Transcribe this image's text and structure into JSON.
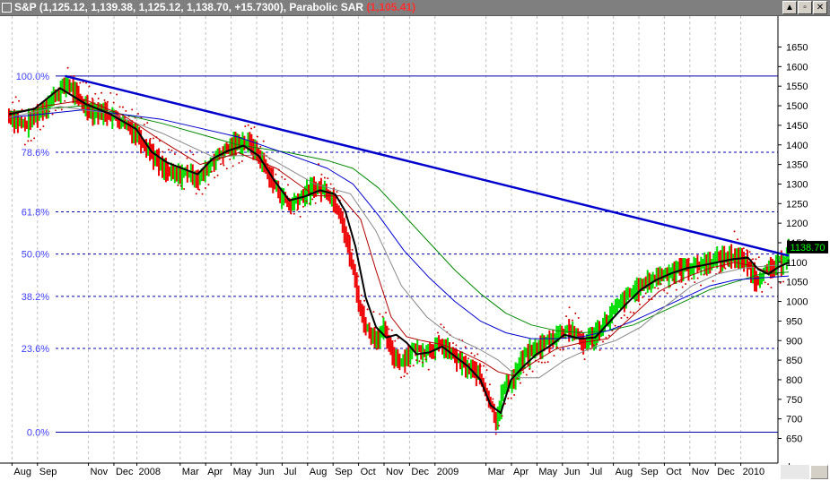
{
  "window": {
    "title_symbol": "S&P",
    "title_ohlc": "(1,125.12, 1,139.38, 1,125.12, 1,138.70, +15.7300)",
    "indicator_name": "Parabolic SAR",
    "indicator_value": "(1,105.41)",
    "minimize_glyph": "▲",
    "restore_glyph": "▫",
    "close_glyph": "✕"
  },
  "colors": {
    "price_up": "#00dd00",
    "price_down": "#ee0000",
    "sar_dots": "#cc0000",
    "ma_short": "#000000",
    "ma_medium": "#b00000",
    "ma_gray": "#888888",
    "ma_long_green": "#008800",
    "ma_long_blue": "#0000cc",
    "trendline": "#0000cc",
    "fib_lines": "#0000aa",
    "fib_labels": "#4040ff",
    "last_price_badge": "#000000",
    "last_price_text": "#00ff00",
    "grid": "#c0c0c0"
  },
  "chart_data": {
    "type": "line",
    "title": "S&P",
    "last_price_label": "1138.70",
    "ylim": [
      620,
      1680
    ],
    "y_ticks": [
      "650",
      "700",
      "750",
      "800",
      "850",
      "900",
      "950",
      "1000",
      "1050",
      "1100",
      "1150",
      "1200",
      "1250",
      "1300",
      "1350",
      "1400",
      "1450",
      "1500",
      "1550",
      "1600",
      "1650"
    ],
    "x_range": [
      0,
      29.4
    ],
    "x_tick_labels": [
      {
        "label": "Aug",
        "x": 0.4
      },
      {
        "label": "Sep",
        "x": 1.4
      },
      {
        "label": "Nov",
        "x": 3.4
      },
      {
        "label": "Dec",
        "x": 4.4
      },
      {
        "label": "2008",
        "x": 5.3
      },
      {
        "label": "Mar",
        "x": 7.0
      },
      {
        "label": "Apr",
        "x": 8.0
      },
      {
        "label": "May",
        "x": 9.0
      },
      {
        "label": "Jun",
        "x": 10.0
      },
      {
        "label": "Jul",
        "x": 11.0
      },
      {
        "label": "Aug",
        "x": 12.0
      },
      {
        "label": "Sep",
        "x": 13.0
      },
      {
        "label": "Oct",
        "x": 14.0
      },
      {
        "label": "Nov",
        "x": 15.0
      },
      {
        "label": "Dec",
        "x": 16.0
      },
      {
        "label": "2009",
        "x": 17.0
      },
      {
        "label": "Mar",
        "x": 19.0
      },
      {
        "label": "Apr",
        "x": 20.0
      },
      {
        "label": "May",
        "x": 21.0
      },
      {
        "label": "Jun",
        "x": 22.0
      },
      {
        "label": "Jul",
        "x": 23.0
      },
      {
        "label": "Aug",
        "x": 24.0
      },
      {
        "label": "Sep",
        "x": 25.0
      },
      {
        "label": "Oct",
        "x": 26.0
      },
      {
        "label": "Nov",
        "x": 27.0
      },
      {
        "label": "Dec",
        "x": 28.0
      },
      {
        "label": "2010",
        "x": 29.0
      },
      {
        "label": "Mar",
        "x": 30.9
      }
    ],
    "fibonacci_levels": [
      {
        "label": "100.0%",
        "value": 1576,
        "style": "solid"
      },
      {
        "label": "78.6%",
        "value": 1381,
        "style": "dashed"
      },
      {
        "label": "61.8%",
        "value": 1229,
        "style": "dashed"
      },
      {
        "label": "50.0%",
        "value": 1121,
        "style": "dashed"
      },
      {
        "label": "38.2%",
        "value": 1013,
        "style": "dashed"
      },
      {
        "label": "23.6%",
        "value": 880,
        "style": "dashed"
      },
      {
        "label": "0.0%",
        "value": 666,
        "style": "solid"
      }
    ],
    "trendline": {
      "x": [
        2.2,
        30.6
      ],
      "y": [
        1576,
        1117
      ]
    },
    "series": [
      {
        "name": "",
        "role": "price",
        "x": [
          0.0,
          0.6,
          1.2,
          1.8,
          2.3,
          2.8,
          3.3,
          3.8,
          4.4,
          5.0,
          5.5,
          6.0,
          6.5,
          7.0,
          7.5,
          8.0,
          8.5,
          9.0,
          9.5,
          10.0,
          10.5,
          11.0,
          11.5,
          12.0,
          12.5,
          13.0,
          13.5,
          13.8,
          14.1,
          14.4,
          14.7,
          15.0,
          15.4,
          15.8,
          16.2,
          16.6,
          17.0,
          17.5,
          18.0,
          18.4,
          18.8,
          19.1,
          19.4,
          19.8,
          20.2,
          20.6,
          21.0,
          21.5,
          22.0,
          22.5,
          23.0,
          23.5,
          24.0,
          24.5,
          25.0,
          25.5,
          26.0,
          26.5,
          27.0,
          27.5,
          28.0,
          28.5,
          29.0,
          29.3,
          29.6,
          29.9,
          30.2,
          30.4,
          30.6
        ],
        "y": [
          1478,
          1452,
          1488,
          1530,
          1560,
          1512,
          1490,
          1485,
          1465,
          1432,
          1392,
          1342,
          1325,
          1332,
          1318,
          1365,
          1390,
          1412,
          1405,
          1352,
          1290,
          1248,
          1275,
          1295,
          1285,
          1230,
          1080,
          975,
          925,
          910,
          930,
          870,
          850,
          880,
          875,
          885,
          890,
          860,
          830,
          820,
          760,
          700,
          780,
          810,
          860,
          880,
          895,
          920,
          935,
          895,
          920,
          960,
          1000,
          1030,
          1050,
          1070,
          1080,
          1090,
          1095,
          1105,
          1115,
          1120,
          1095,
          1060,
          1075,
          1085,
          1100,
          1110,
          1138.7
        ]
      },
      {
        "name": "",
        "role": "moving-average-short",
        "x": [
          0.0,
          1.0,
          2.0,
          3.0,
          4.0,
          5.0,
          5.6,
          6.2,
          6.8,
          7.4,
          8.0,
          8.6,
          9.2,
          9.8,
          10.4,
          11.0,
          11.6,
          12.2,
          12.8,
          13.2,
          13.6,
          14.0,
          14.4,
          14.8,
          15.2,
          15.6,
          16.0,
          16.5,
          17.0,
          17.5,
          18.0,
          18.5,
          18.9,
          19.3,
          19.7,
          20.2,
          20.7,
          21.2,
          21.8,
          22.4,
          23.0,
          23.6,
          24.2,
          24.8,
          25.4,
          26.0,
          26.6,
          27.2,
          27.8,
          28.4,
          29.0,
          29.4,
          29.8,
          30.2,
          30.6
        ],
        "y": [
          1478,
          1492,
          1545,
          1505,
          1478,
          1440,
          1382,
          1355,
          1340,
          1325,
          1365,
          1385,
          1398,
          1372,
          1310,
          1258,
          1268,
          1284,
          1274,
          1230,
          1140,
          1010,
          935,
          908,
          915,
          895,
          865,
          870,
          885,
          860,
          835,
          800,
          735,
          715,
          800,
          835,
          865,
          885,
          915,
          905,
          908,
          950,
          992,
          1030,
          1055,
          1072,
          1085,
          1092,
          1100,
          1108,
          1112,
          1082,
          1070,
          1088,
          1100
        ]
      },
      {
        "name": "",
        "role": "moving-average-medium",
        "x": [
          0.0,
          1.5,
          3.0,
          4.5,
          6.0,
          7.5,
          9.0,
          10.5,
          12.0,
          13.0,
          13.8,
          14.4,
          15.0,
          15.6,
          16.2,
          17.0,
          17.8,
          18.6,
          19.2,
          19.8,
          20.6,
          21.5,
          22.5,
          23.5,
          24.5,
          25.5,
          26.5,
          27.5,
          28.5,
          29.2,
          29.8,
          30.6
        ],
        "y": [
          1480,
          1500,
          1515,
          1475,
          1410,
          1350,
          1380,
          1340,
          1270,
          1270,
          1210,
          1080,
          960,
          910,
          900,
          890,
          870,
          845,
          820,
          810,
          845,
          880,
          895,
          905,
          965,
          1025,
          1060,
          1085,
          1100,
          1090,
          1075,
          1100
        ]
      },
      {
        "name": "",
        "role": "moving-average-gray",
        "x": [
          0.0,
          2.0,
          4.0,
          6.0,
          8.0,
          10.0,
          12.0,
          13.4,
          14.4,
          15.4,
          16.4,
          17.4,
          18.4,
          19.2,
          20.0,
          20.8,
          21.8,
          22.8,
          23.8,
          24.8,
          25.8,
          26.8,
          27.8,
          28.8,
          29.6,
          30.6
        ],
        "y": [
          1470,
          1498,
          1480,
          1430,
          1370,
          1375,
          1300,
          1275,
          1180,
          1040,
          960,
          910,
          880,
          850,
          805,
          805,
          850,
          880,
          900,
          935,
          990,
          1040,
          1070,
          1085,
          1090,
          1095
        ]
      },
      {
        "name": "",
        "role": "moving-average-green",
        "x": [
          0.0,
          3.0,
          6.0,
          9.0,
          11.0,
          12.5,
          13.5,
          14.5,
          15.5,
          16.5,
          17.5,
          18.5,
          19.5,
          20.5,
          21.5,
          22.5,
          23.5,
          24.5,
          25.5,
          26.5,
          27.5,
          28.5,
          29.5,
          30.6
        ],
        "y": [
          1485,
          1500,
          1455,
          1400,
          1380,
          1360,
          1340,
          1290,
          1220,
          1150,
          1080,
          1020,
          970,
          940,
          925,
          920,
          925,
          940,
          970,
          1000,
          1030,
          1050,
          1070,
          1075
        ]
      },
      {
        "name": "",
        "role": "moving-average-blue",
        "x": [
          0.0,
          3.0,
          6.0,
          9.0,
          11.0,
          12.5,
          13.5,
          14.5,
          15.5,
          16.5,
          17.5,
          18.5,
          19.5,
          20.5,
          21.5,
          22.5,
          23.5,
          24.5,
          25.5,
          26.5,
          27.5,
          28.5,
          29.5,
          30.6
        ],
        "y": [
          1470,
          1490,
          1465,
          1420,
          1375,
          1340,
          1300,
          1220,
          1130,
          1060,
          1000,
          950,
          920,
          905,
          905,
          910,
          925,
          950,
          980,
          1010,
          1040,
          1055,
          1060,
          1065
        ]
      }
    ]
  }
}
